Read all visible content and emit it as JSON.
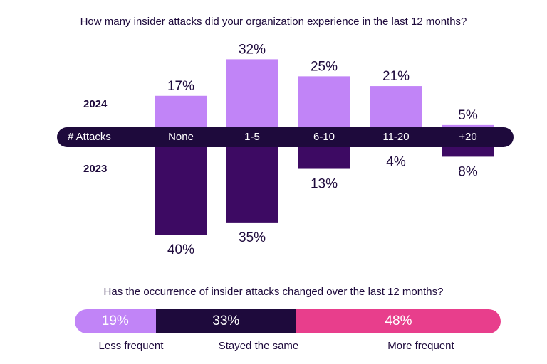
{
  "chart_data": [
    {
      "type": "bar",
      "title": "How many insider attacks did your organization experience in the last 12 months?",
      "xlabel": "# Attacks",
      "categories": [
        "None",
        "1-5",
        "6-10",
        "11-20",
        "+20"
      ],
      "series": [
        {
          "name": "2024",
          "values": [
            17,
            32,
            25,
            21,
            5
          ],
          "labels": [
            "17%",
            "32%",
            "25%",
            "21%",
            "5%"
          ],
          "color": "#c184f7"
        },
        {
          "name": "2023",
          "values": [
            40,
            35,
            13,
            4,
            8
          ],
          "labels": [
            "40%",
            "35%",
            "13%",
            "4%",
            "8%"
          ],
          "color": "#3d0a63"
        }
      ],
      "ylim": [
        0,
        40
      ]
    },
    {
      "type": "bar",
      "title": "Has the occurrence of insider attacks changed over the last 12 months?",
      "categories": [
        "Less frequent",
        "Stayed the same",
        "More frequent"
      ],
      "values": [
        19,
        33,
        48
      ],
      "labels": [
        "19%",
        "33%",
        "48%"
      ],
      "colors": [
        "#c184f7",
        "#1e0a3c",
        "#e83e8c"
      ]
    }
  ]
}
